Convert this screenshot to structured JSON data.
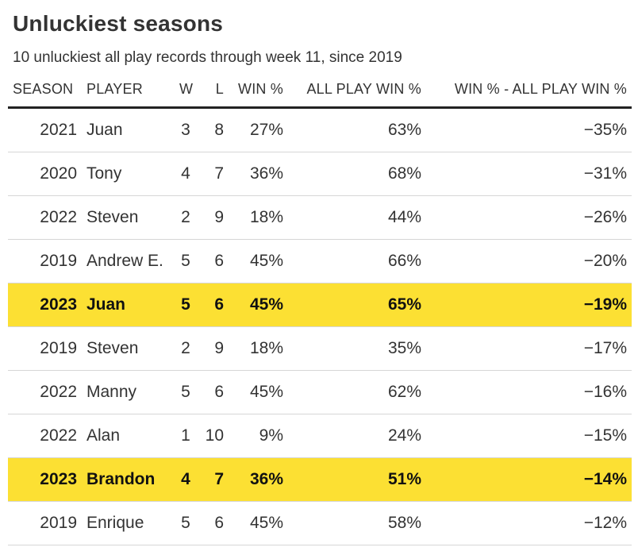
{
  "title": "Unluckiest seasons",
  "subtitle": "10 unluckiest all play records through week 11, since 2019",
  "colors": {
    "highlight": "#fce033",
    "header_rule": "#222222",
    "row_rule": "#d6d6d6",
    "text": "#333333"
  },
  "columns": {
    "season": "SEASON",
    "player": "PLAYER",
    "w": "W",
    "l": "L",
    "win_pct": "WIN %",
    "all_play_win_pct": "ALL PLAY WIN %",
    "diff": "WIN % - ALL PLAY WIN %"
  },
  "rows": [
    {
      "season": "2021",
      "player": "Juan",
      "w": "3",
      "l": "8",
      "win_pct": "27%",
      "all_play_win_pct": "63%",
      "diff": "−35%",
      "highlight": false
    },
    {
      "season": "2020",
      "player": "Tony",
      "w": "4",
      "l": "7",
      "win_pct": "36%",
      "all_play_win_pct": "68%",
      "diff": "−31%",
      "highlight": false
    },
    {
      "season": "2022",
      "player": "Steven",
      "w": "2",
      "l": "9",
      "win_pct": "18%",
      "all_play_win_pct": "44%",
      "diff": "−26%",
      "highlight": false
    },
    {
      "season": "2019",
      "player": "Andrew E.",
      "w": "5",
      "l": "6",
      "win_pct": "45%",
      "all_play_win_pct": "66%",
      "diff": "−20%",
      "highlight": false
    },
    {
      "season": "2023",
      "player": "Juan",
      "w": "5",
      "l": "6",
      "win_pct": "45%",
      "all_play_win_pct": "65%",
      "diff": "−19%",
      "highlight": true
    },
    {
      "season": "2019",
      "player": "Steven",
      "w": "2",
      "l": "9",
      "win_pct": "18%",
      "all_play_win_pct": "35%",
      "diff": "−17%",
      "highlight": false
    },
    {
      "season": "2022",
      "player": "Manny",
      "w": "5",
      "l": "6",
      "win_pct": "45%",
      "all_play_win_pct": "62%",
      "diff": "−16%",
      "highlight": false
    },
    {
      "season": "2022",
      "player": "Alan",
      "w": "1",
      "l": "10",
      "win_pct": "9%",
      "all_play_win_pct": "24%",
      "diff": "−15%",
      "highlight": false
    },
    {
      "season": "2023",
      "player": "Brandon",
      "w": "4",
      "l": "7",
      "win_pct": "36%",
      "all_play_win_pct": "51%",
      "diff": "−14%",
      "highlight": true
    },
    {
      "season": "2019",
      "player": "Enrique",
      "w": "5",
      "l": "6",
      "win_pct": "45%",
      "all_play_win_pct": "58%",
      "diff": "−12%",
      "highlight": false
    }
  ]
}
